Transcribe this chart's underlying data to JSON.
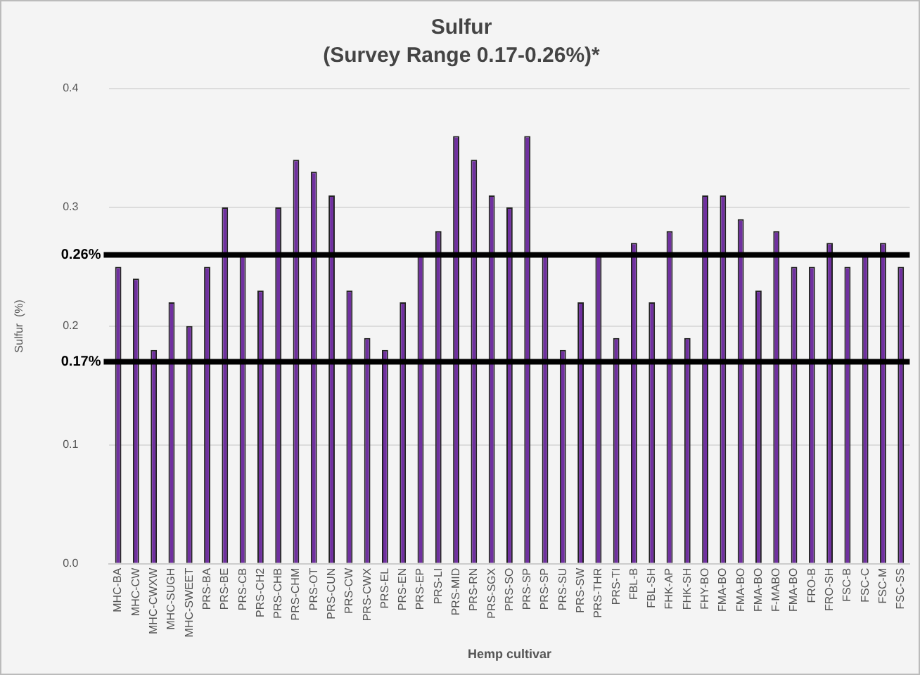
{
  "chart_data": {
    "type": "bar",
    "title": "Sulfur",
    "subtitle": "(Survey Range 0.17-0.26%)*",
    "xlabel": "Hemp cultivar",
    "ylabel": "Sulfur  (%)",
    "categories": [
      "MHC-BA",
      "MHC-CW",
      "MHC-CWXW",
      "MHC-SUGH",
      "MHC-SWEET",
      "PRS-BA",
      "PRS-BE",
      "PRS-CB",
      "PRS-CH2",
      "PRS-CHB",
      "PRS-CHM",
      "PRS-OT",
      "PRS-CUN",
      "PRS-CW",
      "PRS-CWX",
      "PRS-EL",
      "PRS-EN",
      "PRS-EP",
      "PRS-LI",
      "PRS-MID",
      "PRS-RN",
      "PRS-SGX",
      "PRS-SO",
      "PRS-SP",
      "PRS-SP",
      "PRS-SU",
      "PRS-SW",
      "PRS-THR",
      "PRS-TI",
      "FBL-B",
      "FBL-SH",
      "FHK-AP",
      "FHK-SH",
      "FHY-BO",
      "FMA-BO",
      "FMA-BO",
      "FMA-BO",
      "F-MABO",
      "FMA-BO",
      "FRO-B",
      "FRO-SH",
      "FSC-B",
      "FSC-C",
      "FSC-M",
      "FSC-SS"
    ],
    "values": [
      0.25,
      0.24,
      0.18,
      0.22,
      0.2,
      0.25,
      0.3,
      0.26,
      0.23,
      0.3,
      0.34,
      0.33,
      0.31,
      0.23,
      0.19,
      0.18,
      0.22,
      0.26,
      0.28,
      0.36,
      0.34,
      0.31,
      0.3,
      0.36,
      0.26,
      0.18,
      0.22,
      0.26,
      0.19,
      0.27,
      0.22,
      0.28,
      0.19,
      0.31,
      0.31,
      0.29,
      0.23,
      0.28,
      0.25,
      0.25,
      0.27,
      0.25,
      0.26,
      0.27,
      0.25
    ],
    "color": "#7030a0",
    "ylim": [
      0,
      0.4
    ],
    "yticks": [
      {
        "value": 0,
        "label": "0.0"
      },
      {
        "value": 0.1,
        "label": "0.1"
      },
      {
        "value": 0.2,
        "label": "0.2"
      },
      {
        "value": 0.3,
        "label": "0.3"
      },
      {
        "value": 0.4,
        "label": "0.4"
      }
    ],
    "ref_lines": [
      {
        "axis": "y",
        "value": 0.26,
        "label": "0.26%",
        "color": "#000000"
      },
      {
        "axis": "y",
        "value": 0.17,
        "label": "0.17%",
        "color": "#000000"
      }
    ],
    "grid": "y",
    "legend": false
  }
}
